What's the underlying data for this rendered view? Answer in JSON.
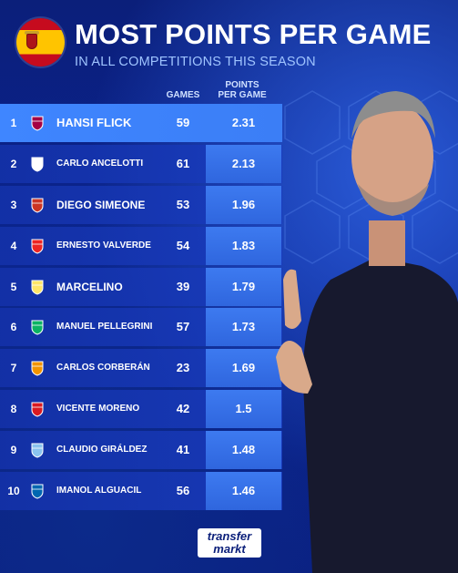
{
  "header": {
    "title": "MOST POINTS PER GAME",
    "subtitle": "IN ALL COMPETITIONS THIS SEASON",
    "flag_icon": "spain-flag-icon"
  },
  "table": {
    "col_games": "GAMES",
    "col_ppg_line1": "POINTS",
    "col_ppg_line2": "PER GAME",
    "rows": [
      {
        "rank": "1",
        "name": "HANSI FLICK",
        "games": "59",
        "ppg": "2.31",
        "club_icon": "barcelona-crest-icon",
        "color": "#a50044"
      },
      {
        "rank": "2",
        "name": "CARLO ANCELOTTI",
        "games": "61",
        "ppg": "2.13",
        "club_icon": "real-madrid-crest-icon",
        "color": "#ffffff"
      },
      {
        "rank": "3",
        "name": "DIEGO SIMEONE",
        "games": "53",
        "ppg": "1.96",
        "club_icon": "atletico-madrid-crest-icon",
        "color": "#cb3524"
      },
      {
        "rank": "4",
        "name": "ERNESTO VALVERDE",
        "games": "54",
        "ppg": "1.83",
        "club_icon": "athletic-bilbao-crest-icon",
        "color": "#ee2523"
      },
      {
        "rank": "5",
        "name": "MARCELINO",
        "games": "39",
        "ppg": "1.79",
        "club_icon": "villarreal-crest-icon",
        "color": "#ffe667"
      },
      {
        "rank": "6",
        "name": "MANUEL PELLEGRINI",
        "games": "57",
        "ppg": "1.73",
        "club_icon": "real-betis-crest-icon",
        "color": "#0bb363"
      },
      {
        "rank": "7",
        "name": "CARLOS CORBERÁN",
        "games": "23",
        "ppg": "1.69",
        "club_icon": "valencia-crest-icon",
        "color": "#f29400"
      },
      {
        "rank": "8",
        "name": "VICENTE MORENO",
        "games": "42",
        "ppg": "1.5",
        "club_icon": "osasuna-crest-icon",
        "color": "#d91a21"
      },
      {
        "rank": "9",
        "name": "CLAUDIO GIRÁLDEZ",
        "games": "41",
        "ppg": "1.48",
        "club_icon": "celta-vigo-crest-icon",
        "color": "#8ac3ee"
      },
      {
        "rank": "10",
        "name": "IMANOL ALGUACIL",
        "games": "56",
        "ppg": "1.46",
        "club_icon": "real-sociedad-crest-icon",
        "color": "#0067b1"
      }
    ]
  },
  "brand": {
    "line1": "transfer",
    "line2": "markt"
  }
}
